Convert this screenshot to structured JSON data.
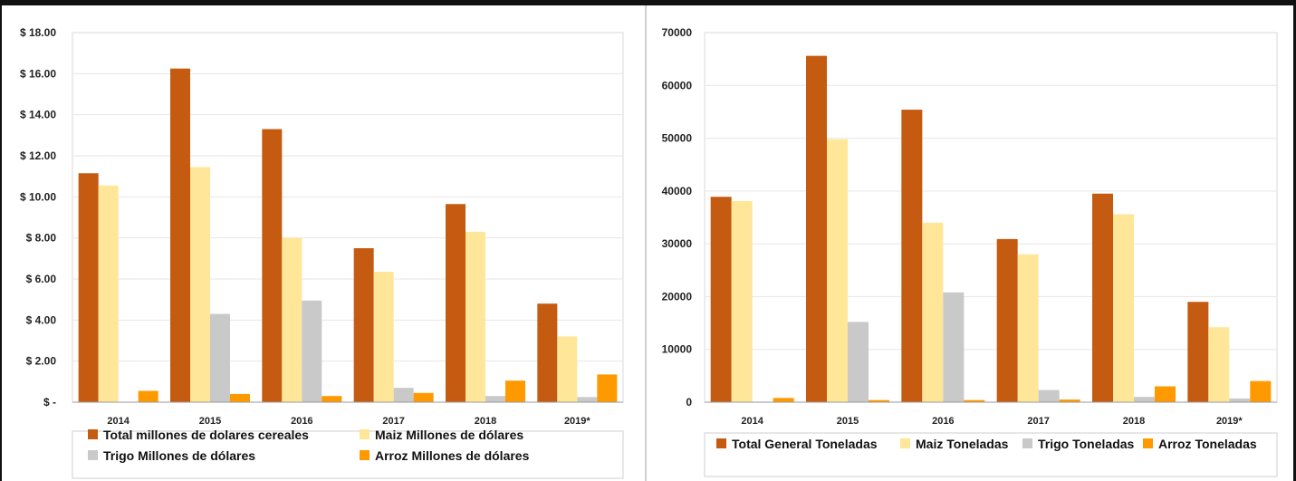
{
  "colors": {
    "total": "#c55a11",
    "maiz": "#ffe699",
    "trigo": "#c9c9c9",
    "arroz": "#ff9900",
    "gridline": "#e6e6e6",
    "axis": "#999999"
  },
  "chart_data": [
    {
      "type": "bar",
      "categories": [
        "2014",
        "2015",
        "2016",
        "2017",
        "2018",
        "2019*"
      ],
      "y_tick_labels": [
        "$ -",
        "$ 2.00",
        "$ 4.00",
        "$ 6.00",
        "$ 8.00",
        "$ 10.00",
        "$ 12.00",
        "$ 14.00",
        "$ 16.00",
        "$ 18.00"
      ],
      "ylim": [
        0,
        18
      ],
      "grid": true,
      "legend_position": "bottom",
      "series": [
        {
          "name": "Total millones de dolares cereales",
          "color_key": "total",
          "values": [
            11.15,
            16.25,
            13.3,
            7.5,
            9.65,
            4.8
          ]
        },
        {
          "name": "Maiz Millones de dólares",
          "color_key": "maiz",
          "values": [
            10.55,
            11.45,
            8.0,
            6.35,
            8.3,
            3.2
          ]
        },
        {
          "name": "Trigo Millones de dólares",
          "color_key": "trigo",
          "values": [
            0.0,
            4.3,
            4.95,
            0.7,
            0.3,
            0.25
          ]
        },
        {
          "name": "Arroz Millones de dólares",
          "color_key": "arroz",
          "values": [
            0.55,
            0.4,
            0.3,
            0.45,
            1.05,
            1.35
          ]
        }
      ]
    },
    {
      "type": "bar",
      "categories": [
        "2014",
        "2015",
        "2016",
        "2017",
        "2018",
        "2019*"
      ],
      "y_tick_labels": [
        "0",
        "10000",
        "20000",
        "30000",
        "40000",
        "50000",
        "60000",
        "70000"
      ],
      "ylim": [
        0,
        70000
      ],
      "grid": true,
      "legend_position": "bottom",
      "series": [
        {
          "name": "Total General Toneladas",
          "color_key": "total",
          "values": [
            38900,
            65600,
            55400,
            30900,
            39500,
            19000
          ]
        },
        {
          "name": "Maiz Toneladas",
          "color_key": "maiz",
          "values": [
            38100,
            49800,
            34000,
            28000,
            35600,
            14200
          ]
        },
        {
          "name": "Trigo Toneladas",
          "color_key": "trigo",
          "values": [
            100,
            15200,
            20800,
            2300,
            1000,
            700
          ]
        },
        {
          "name": "Arroz Toneladas",
          "color_key": "arroz",
          "values": [
            800,
            400,
            400,
            500,
            3000,
            4000
          ]
        }
      ]
    }
  ]
}
